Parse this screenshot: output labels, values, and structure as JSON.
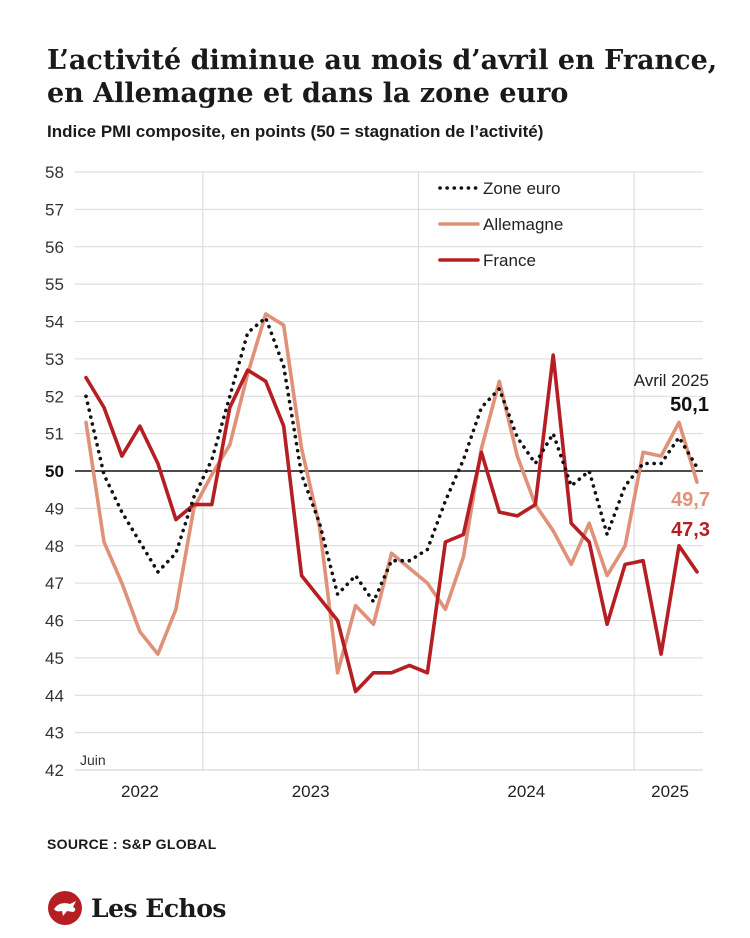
{
  "title": "L’activité diminue au mois d’avril en France, en Allemagne et dans la zone euro",
  "subtitle": "Indice PMI composite, en points (50 = stagnation de l’activité)",
  "source": "SOURCE : S&P GLOBAL",
  "brand": "Les Echos",
  "colors": {
    "zone_euro": "#111111",
    "allemagne": "#e0917a",
    "france": "#b51f24",
    "grid": "#d9d9d9",
    "reference": "#111111"
  },
  "chart_data": {
    "type": "line",
    "title": "L’activité diminue au mois d’avril en France, en Allemagne et dans la zone euro",
    "subtitle": "Indice PMI composite, en points (50 = stagnation de l’activité)",
    "xlabel": "",
    "ylabel": "",
    "ylim": [
      42,
      58
    ],
    "yticks": [
      "58",
      "57",
      "56",
      "55",
      "54",
      "53",
      "52",
      "51",
      "50",
      "49",
      "48",
      "47",
      "46",
      "45",
      "44",
      "43",
      "42"
    ],
    "x": [
      "2022-06",
      "2022-07",
      "2022-08",
      "2022-09",
      "2022-10",
      "2022-11",
      "2022-12",
      "2023-01",
      "2023-02",
      "2023-03",
      "2023-04",
      "2023-05",
      "2023-06",
      "2023-07",
      "2023-08",
      "2023-09",
      "2023-10",
      "2023-11",
      "2023-12",
      "2024-01",
      "2024-02",
      "2024-03",
      "2024-04",
      "2024-05",
      "2024-06",
      "2024-07",
      "2024-08",
      "2024-09",
      "2024-10",
      "2024-11",
      "2024-12",
      "2025-01",
      "2025-02",
      "2025-03",
      "2025-04"
    ],
    "x_tick_labels": [
      "2022",
      "2023",
      "2024",
      "2025"
    ],
    "x_start_note": "Juin",
    "grid": true,
    "legend": {
      "placement": "top-right",
      "entries": [
        "Zone euro",
        "Allemagne",
        "France"
      ]
    },
    "reference_line": {
      "y": 50,
      "label": "50"
    },
    "series": [
      {
        "name": "Zone euro",
        "style": "dotted",
        "values": [
          52.0,
          49.9,
          48.9,
          48.1,
          47.3,
          47.8,
          49.3,
          50.3,
          52.0,
          53.7,
          54.1,
          52.8,
          49.9,
          48.6,
          46.7,
          47.2,
          46.5,
          47.6,
          47.6,
          47.9,
          49.2,
          50.3,
          51.7,
          52.2,
          50.9,
          50.2,
          51.0,
          49.6,
          50.0,
          48.3,
          49.6,
          50.2,
          50.2,
          50.9,
          50.1
        ]
      },
      {
        "name": "Allemagne",
        "style": "solid",
        "values": [
          51.3,
          48.1,
          47.0,
          45.7,
          45.1,
          46.3,
          49.0,
          49.9,
          50.7,
          52.6,
          54.2,
          53.9,
          50.6,
          48.5,
          44.6,
          46.4,
          45.9,
          47.8,
          47.4,
          47.0,
          46.3,
          47.7,
          50.6,
          52.4,
          50.4,
          49.1,
          48.4,
          47.5,
          48.6,
          47.2,
          48.0,
          50.5,
          50.4,
          51.3,
          49.7
        ]
      },
      {
        "name": "France",
        "style": "solid",
        "values": [
          52.5,
          51.7,
          50.4,
          51.2,
          50.2,
          48.7,
          49.1,
          49.1,
          51.7,
          52.7,
          52.4,
          51.2,
          47.2,
          46.6,
          46.0,
          44.1,
          44.6,
          44.6,
          44.8,
          44.6,
          48.1,
          48.3,
          50.5,
          48.9,
          48.8,
          49.1,
          53.1,
          48.6,
          48.1,
          45.9,
          47.5,
          47.6,
          45.1,
          48.0,
          47.3
        ]
      }
    ],
    "annotations": [
      {
        "text": "Avril 2025",
        "series": "Zone euro"
      },
      {
        "text": "50,1",
        "series": "Zone euro"
      },
      {
        "text": "49,7",
        "series": "Allemagne"
      },
      {
        "text": "47,3",
        "series": "France"
      }
    ]
  }
}
